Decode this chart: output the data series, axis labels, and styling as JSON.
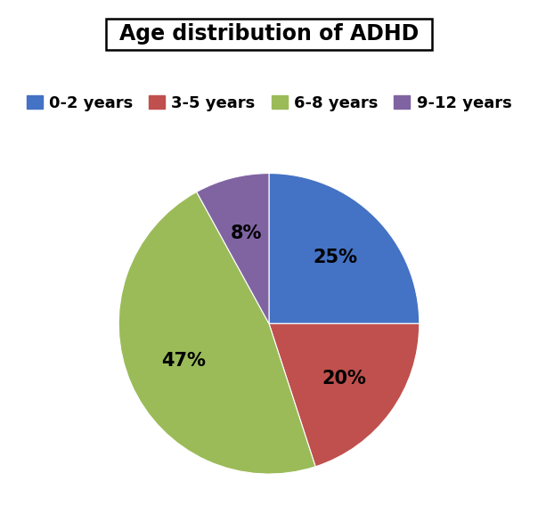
{
  "title": "Age distribution of ADHD",
  "labels": [
    "0-2 years",
    "3-5 years",
    "6-8 years",
    "9-12 years"
  ],
  "values": [
    25,
    20,
    47,
    8
  ],
  "colors": [
    "#4472C4",
    "#C0504D",
    "#9BBB59",
    "#8064A2"
  ],
  "pct_labels": [
    "25%",
    "20%",
    "47%",
    "8%"
  ],
  "startangle": 90,
  "title_fontsize": 17,
  "pct_fontsize": 15,
  "legend_fontsize": 13,
  "background_color": "#ffffff"
}
